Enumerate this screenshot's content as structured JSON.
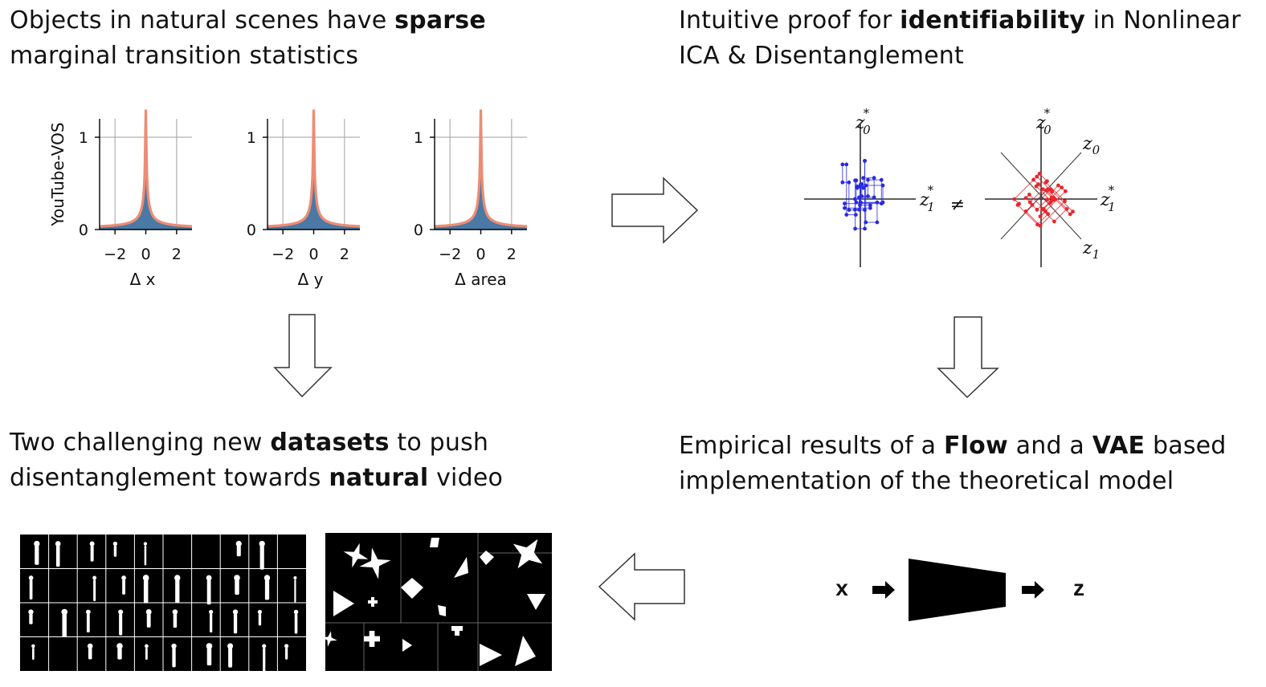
{
  "headings": {
    "top_left": {
      "pre": "Objects in natural scenes have ",
      "bold": "sparse",
      "post": " marginal transition statistics"
    },
    "top_right": {
      "pre": "Intuitive proof for ",
      "bold": "identifiability",
      "post": " in Nonlinear ICA & Disentanglement"
    },
    "bottom_left": {
      "pre": "Two challenging new ",
      "bold1": "datasets",
      "mid": " to push disentanglement towards ",
      "bold2": "natural",
      "post": " video"
    },
    "bottom_right": {
      "pre": "Empirical results of a ",
      "bold1": "Flow",
      "mid": " and a ",
      "bold2": "VAE",
      "post": " based implementation of the theoretical model"
    }
  },
  "chart_data": [
    {
      "type": "area",
      "title": "",
      "xlabel": "Δ x",
      "ylabel": "YouTube-VOS",
      "xticks": [
        "−2",
        "0",
        "2"
      ],
      "yticks": [
        "0",
        "1"
      ],
      "xlim": [
        -3,
        3
      ],
      "ylim": [
        0,
        1.2
      ],
      "grid": true,
      "series": [
        {
          "kind": "histogram",
          "color": "#4a79a5"
        },
        {
          "kind": "fit",
          "color": "#ec8c74"
        }
      ]
    },
    {
      "type": "area",
      "title": "",
      "xlabel": "Δ y",
      "ylabel": "",
      "xticks": [
        "−2",
        "0",
        "2"
      ],
      "yticks": [
        "0",
        "1"
      ],
      "xlim": [
        -3,
        3
      ],
      "ylim": [
        0,
        1.2
      ],
      "grid": true,
      "series": [
        {
          "kind": "histogram",
          "color": "#4a79a5"
        },
        {
          "kind": "fit",
          "color": "#ec8c74"
        }
      ]
    },
    {
      "type": "area",
      "title": "",
      "xlabel": "Δ area",
      "ylabel": "",
      "xticks": [
        "−2",
        "0",
        "2"
      ],
      "yticks": [
        "0",
        "1"
      ],
      "xlim": [
        -3,
        3
      ],
      "ylim": [
        0,
        1.2
      ],
      "grid": true,
      "series": [
        {
          "kind": "histogram",
          "color": "#4a79a5"
        },
        {
          "kind": "fit",
          "color": "#ec8c74"
        }
      ]
    }
  ],
  "scatter": {
    "left": {
      "color": "#2a2ae0",
      "axis_x": "z",
      "axis_x_sub": "1",
      "axis_y": "z",
      "axis_y_sub": "0",
      "star": "*"
    },
    "right": {
      "color": "#e8262c",
      "axis_x": "z",
      "axis_x_sub": "1",
      "axis_y": "z",
      "axis_y_sub": "0",
      "star": "*",
      "rot_label_0": "z",
      "rot_sub_0": "0",
      "rot_label_1": "z",
      "rot_sub_1": "1"
    },
    "neq": "≠"
  },
  "model": {
    "input": "x",
    "output": "z"
  },
  "colors": {
    "hist_fill": "#4a79a5",
    "fit_line": "#ec8c74",
    "grid": "#b0b0b0"
  }
}
